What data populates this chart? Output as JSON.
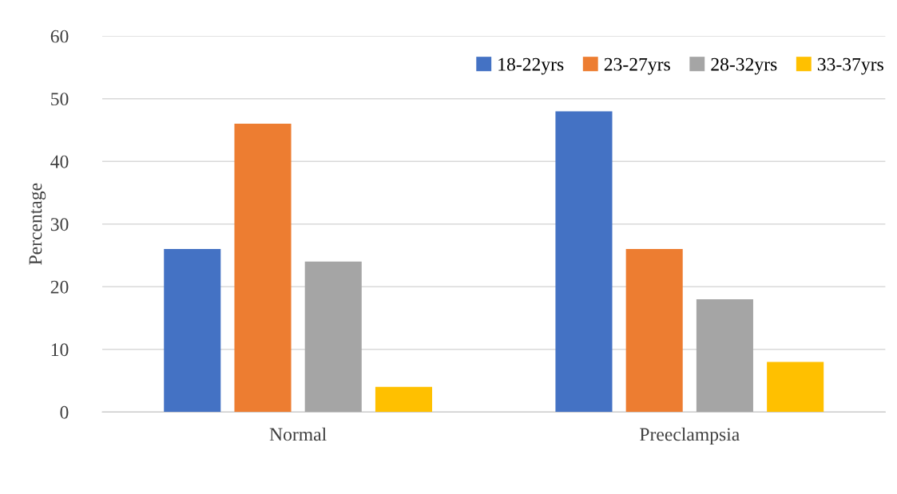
{
  "chart_data": {
    "type": "bar",
    "ylabel": "Percentage",
    "categories": [
      "Normal",
      "Preeclampsia"
    ],
    "series": [
      {
        "name": "18-22yrs",
        "color": "#4472c4",
        "values": [
          26,
          48
        ]
      },
      {
        "name": "23-27yrs",
        "color": "#ed7d31",
        "values": [
          46,
          26
        ]
      },
      {
        "name": "28-32yrs",
        "color": "#a5a5a5",
        "values": [
          24,
          18
        ]
      },
      {
        "name": "33-37yrs",
        "color": "#ffc000",
        "values": [
          4,
          8
        ]
      }
    ],
    "ylim": [
      0,
      60
    ],
    "yticks": [
      0,
      10,
      20,
      30,
      40,
      50,
      60
    ],
    "grid": "y",
    "legend": "top right"
  }
}
